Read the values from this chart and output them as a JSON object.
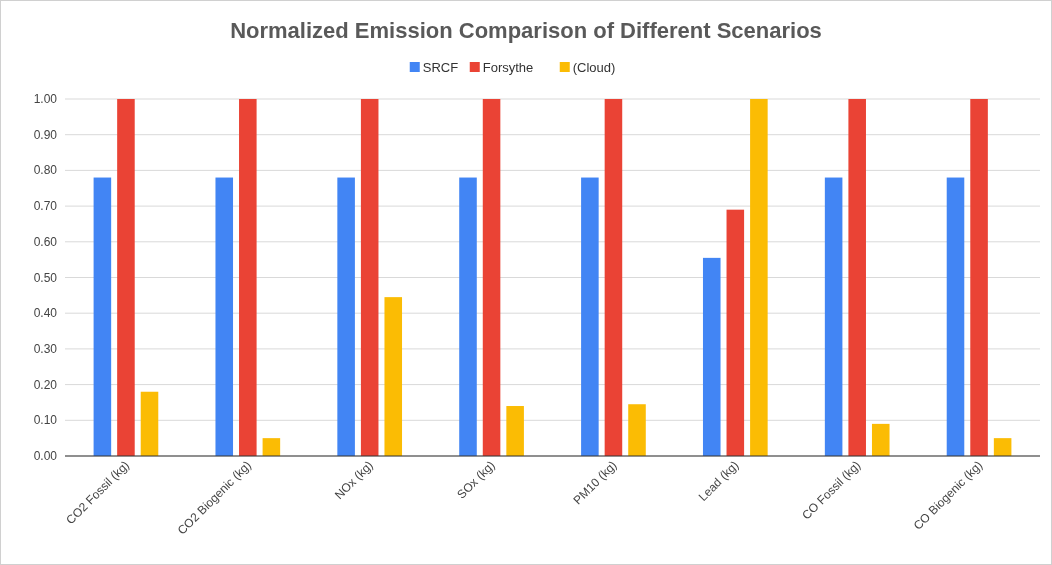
{
  "chart_data": {
    "type": "bar",
    "title": "Normalized Emission Comparison of Different Scenarios",
    "categories": [
      "CO2 Fossil (kg)",
      "CO2 Biogenic (kg)",
      "NOx (kg)",
      "SOx (kg)",
      "PM10 (kg)",
      "Lead (kg)",
      "CO Fossil (kg)",
      "CO Biogenic (kg)"
    ],
    "series": [
      {
        "name": "SRCF",
        "color": "#4285f4",
        "values": [
          0.78,
          0.78,
          0.78,
          0.78,
          0.78,
          0.555,
          0.78,
          0.78
        ]
      },
      {
        "name": "Forsythe",
        "color": "#ea4335",
        "values": [
          1,
          1,
          1,
          1,
          1,
          0.69,
          1,
          1
        ]
      },
      {
        "name": "(Cloud)",
        "color": "#fbbc04",
        "values": [
          0.18,
          0.05,
          0.445,
          0.14,
          0.145,
          1,
          0.09,
          0.05
        ]
      }
    ],
    "ylim": [
      0,
      1
    ],
    "yticks": [
      {
        "value": 0,
        "label": "0.00"
      },
      {
        "value": 0.1,
        "label": "0.10"
      },
      {
        "value": 0.2,
        "label": "0.20"
      },
      {
        "value": 0.3,
        "label": "0.30"
      },
      {
        "value": 0.4,
        "label": "0.40"
      },
      {
        "value": 0.5,
        "label": "0.50"
      },
      {
        "value": 0.6,
        "label": "0.60"
      },
      {
        "value": 0.7,
        "label": "0.70"
      },
      {
        "value": 0.8,
        "label": "0.80"
      },
      {
        "value": 0.9,
        "label": "0.90"
      },
      {
        "value": 1,
        "label": "1.00"
      }
    ],
    "grid": "y",
    "legend": "top"
  }
}
